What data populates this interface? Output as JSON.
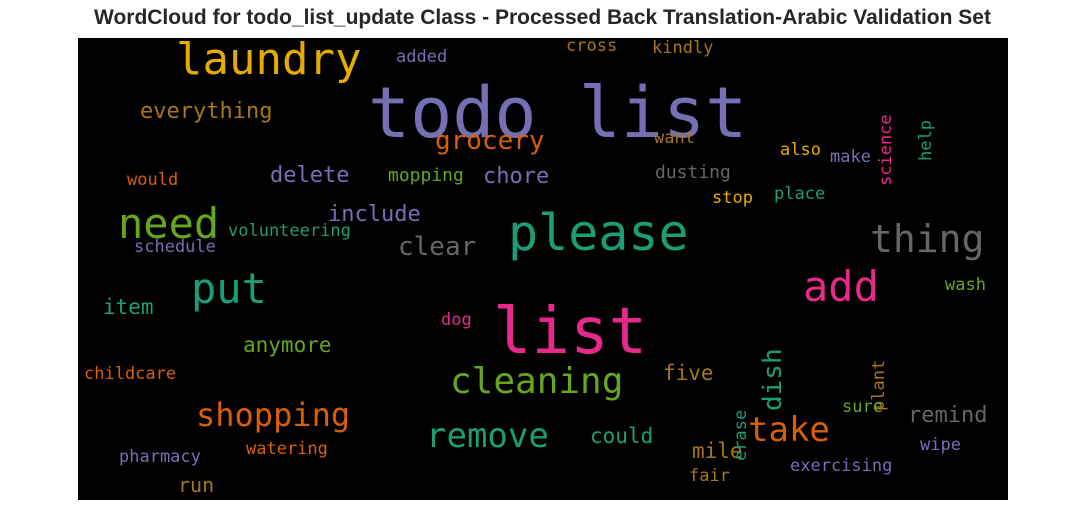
{
  "chart_data": {
    "type": "wordcloud",
    "title": "WordCloud for todo_list_update Class - Processed Back Translation-Arabic Validation Set",
    "background": "#000000",
    "palette": [
      "#7570b3",
      "#e7298a",
      "#1b9e77",
      "#66a61e",
      "#d95f02",
      "#e6ab02",
      "#a6761d",
      "#666666"
    ],
    "words": [
      {
        "text": "todo list",
        "color": "#7570b3",
        "rotate": 0
      },
      {
        "text": "list",
        "color": "#e7298a",
        "rotate": 0
      },
      {
        "text": "please",
        "color": "#1b9e77",
        "rotate": 0
      },
      {
        "text": "laundry",
        "color": "#e6ab02",
        "rotate": 0
      },
      {
        "text": "need",
        "color": "#66a61e",
        "rotate": 0
      },
      {
        "text": "put",
        "color": "#1b9e77",
        "rotate": 0
      },
      {
        "text": "add",
        "color": "#e7298a",
        "rotate": 0
      },
      {
        "text": "thing",
        "color": "#666666",
        "rotate": 0
      },
      {
        "text": "cleaning",
        "color": "#66a61e",
        "rotate": 0
      },
      {
        "text": "remove",
        "color": "#1b9e77",
        "rotate": 0
      },
      {
        "text": "shopping",
        "color": "#d95f02",
        "rotate": 0
      },
      {
        "text": "take",
        "color": "#d95f02",
        "rotate": 0
      },
      {
        "text": "grocery",
        "color": "#d95f02",
        "rotate": 0
      },
      {
        "text": "clear",
        "color": "#666666",
        "rotate": 0
      },
      {
        "text": "dish",
        "color": "#1b9e77",
        "rotate": -90
      },
      {
        "text": "everything",
        "color": "#a6761d",
        "rotate": 0
      },
      {
        "text": "delete",
        "color": "#7570b3",
        "rotate": 0
      },
      {
        "text": "chore",
        "color": "#7570b3",
        "rotate": 0
      },
      {
        "text": "include",
        "color": "#7570b3",
        "rotate": 0
      },
      {
        "text": "anymore",
        "color": "#66a61e",
        "rotate": 0
      },
      {
        "text": "item",
        "color": "#1b9e77",
        "rotate": 0
      },
      {
        "text": "remind",
        "color": "#666666",
        "rotate": 0
      },
      {
        "text": "five",
        "color": "#a6761d",
        "rotate": 0
      },
      {
        "text": "could",
        "color": "#1b9e77",
        "rotate": 0
      },
      {
        "text": "mile",
        "color": "#a6761d",
        "rotate": 0
      },
      {
        "text": "run",
        "color": "#a6761d",
        "rotate": 0
      },
      {
        "text": "mopping",
        "color": "#66a61e",
        "rotate": 0
      },
      {
        "text": "dusting",
        "color": "#666666",
        "rotate": 0
      },
      {
        "text": "volunteering",
        "color": "#1b9e77",
        "rotate": 0
      },
      {
        "text": "schedule",
        "color": "#7570b3",
        "rotate": 0
      },
      {
        "text": "would",
        "color": "#d95f02",
        "rotate": 0
      },
      {
        "text": "added",
        "color": "#7570b3",
        "rotate": 0
      },
      {
        "text": "cross",
        "color": "#a6761d",
        "rotate": 0
      },
      {
        "text": "kindly",
        "color": "#a6761d",
        "rotate": 0
      },
      {
        "text": "want",
        "color": "#a6761d",
        "rotate": 0
      },
      {
        "text": "also",
        "color": "#e6ab02",
        "rotate": 0
      },
      {
        "text": "make",
        "color": "#7570b3",
        "rotate": 0
      },
      {
        "text": "stop",
        "color": "#e6ab02",
        "rotate": 0
      },
      {
        "text": "place",
        "color": "#1b9e77",
        "rotate": 0
      },
      {
        "text": "science",
        "color": "#e7298a",
        "rotate": -90
      },
      {
        "text": "help",
        "color": "#1b9e77",
        "rotate": -90
      },
      {
        "text": "wash",
        "color": "#66a61e",
        "rotate": 0
      },
      {
        "text": "plant",
        "color": "#a6761d",
        "rotate": -90
      },
      {
        "text": "dog",
        "color": "#e7298a",
        "rotate": 0
      },
      {
        "text": "erase",
        "color": "#1b9e77",
        "rotate": -90
      },
      {
        "text": "childcare",
        "color": "#d95f02",
        "rotate": 0
      },
      {
        "text": "pharmacy",
        "color": "#7570b3",
        "rotate": 0
      },
      {
        "text": "watering",
        "color": "#d95f02",
        "rotate": 0
      },
      {
        "text": "sure",
        "color": "#66a61e",
        "rotate": 0
      },
      {
        "text": "wipe",
        "color": "#7570b3",
        "rotate": 0
      },
      {
        "text": "exercising",
        "color": "#7570b3",
        "rotate": 0
      },
      {
        "text": "fair",
        "color": "#a6761d",
        "rotate": 0
      }
    ]
  }
}
